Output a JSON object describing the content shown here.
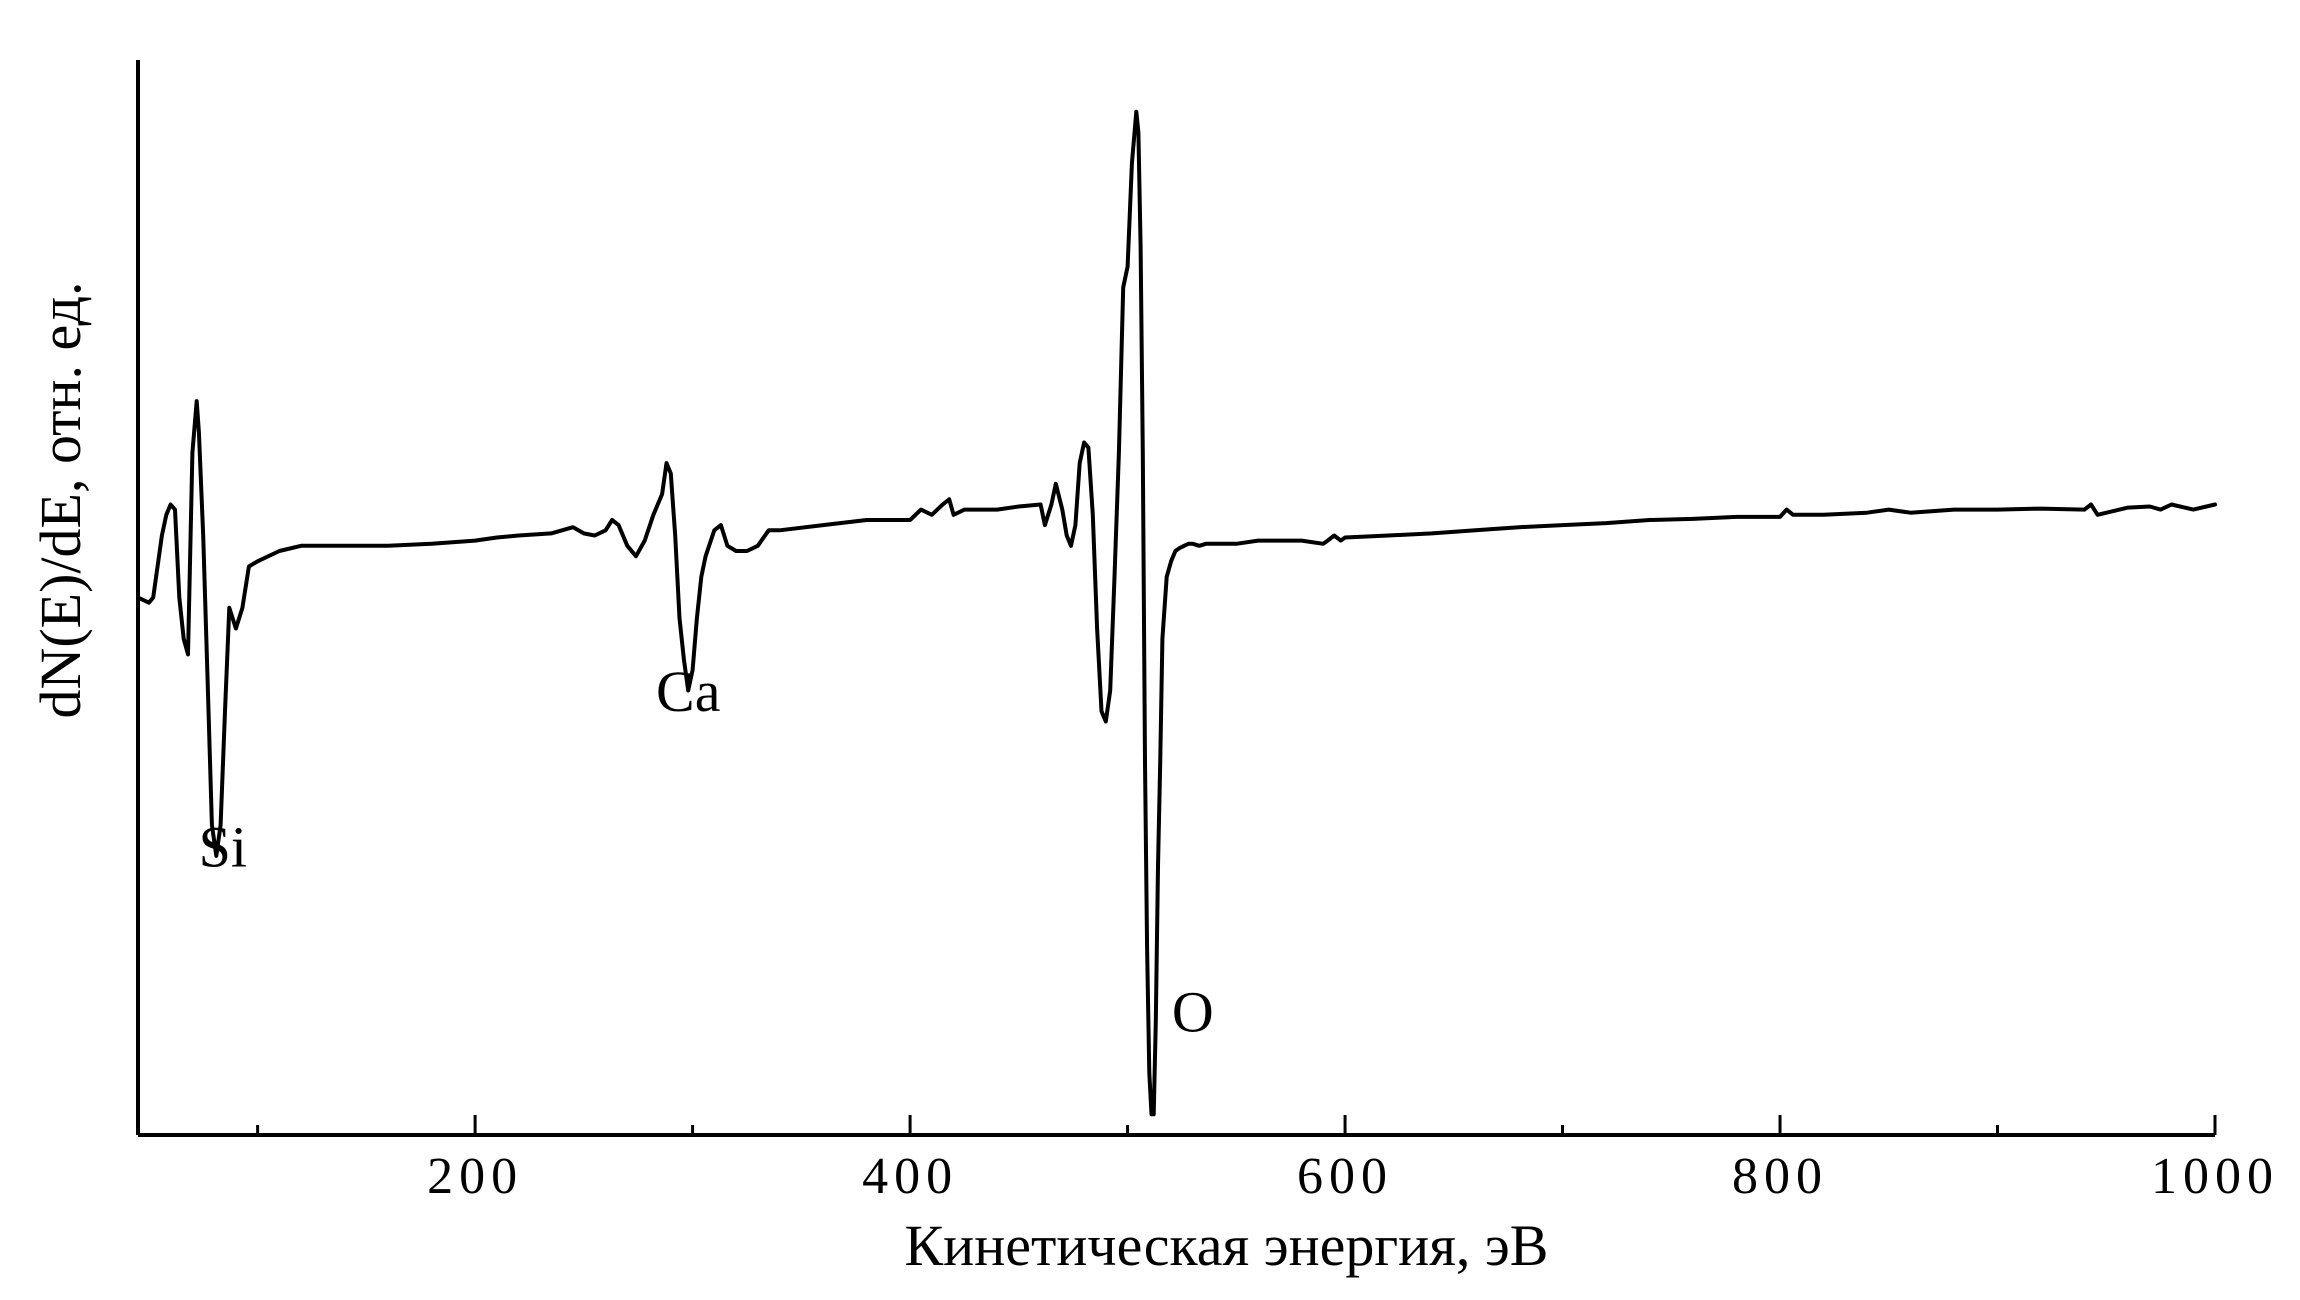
{
  "chart_data": {
    "type": "line",
    "xlabel": "Кинетическая энергия, эВ",
    "ylabel": "dN(E)/dE, отн. ед.",
    "xlim": [
      45,
      1000
    ],
    "ylim": [
      -560,
      480
    ],
    "xticks_major": [
      200,
      400,
      600,
      800,
      1000
    ],
    "xticks_minor": [
      100,
      300,
      500,
      700,
      900
    ],
    "xtick_labels": [
      "200",
      "400",
      "600",
      "800",
      "1000"
    ],
    "grid": false,
    "annotations": [
      {
        "text": "Si",
        "x": 84,
        "y": -300
      },
      {
        "text": "Ca",
        "x": 298,
        "y": -150
      },
      {
        "text": "O",
        "x": 530,
        "y": -460
      }
    ],
    "series": [
      {
        "x": [
          45,
          50,
          52,
          56,
          58,
          60,
          62,
          64,
          66,
          68,
          70,
          72,
          73,
          75,
          77,
          79,
          81,
          83,
          85,
          87,
          90,
          93,
          96,
          100,
          110,
          120,
          130,
          140,
          160,
          180,
          200,
          210,
          220,
          235,
          245,
          250,
          255,
          260,
          263,
          266,
          270,
          274,
          278,
          282,
          286,
          288,
          290,
          292,
          294,
          296,
          298,
          300,
          302,
          304,
          306,
          310,
          313,
          316,
          320,
          325,
          330,
          335,
          340,
          360,
          380,
          400,
          405,
          410,
          415,
          418,
          420,
          425,
          430,
          440,
          450,
          460,
          462,
          465,
          467,
          470,
          472,
          474,
          476,
          478,
          480,
          482,
          484,
          486,
          488,
          490,
          492,
          494,
          496,
          498,
          500,
          502,
          504,
          505,
          506,
          507,
          508,
          509,
          510,
          511,
          512,
          513,
          514,
          515,
          516,
          518,
          520,
          522,
          524,
          526,
          528,
          530,
          533,
          536,
          540,
          545,
          550,
          560,
          580,
          590,
          592,
          595,
          598,
          600,
          620,
          640,
          660,
          680,
          700,
          720,
          740,
          760,
          780,
          800,
          803,
          806,
          820,
          840,
          850,
          860,
          880,
          900,
          920,
          940,
          943,
          946,
          960,
          970,
          975,
          980,
          990,
          1000
        ],
        "y": [
          -40,
          -45,
          -40,
          20,
          40,
          50,
          45,
          -40,
          -80,
          -95,
          100,
          150,
          120,
          20,
          -120,
          -260,
          -290,
          -260,
          -150,
          -50,
          -70,
          -50,
          -10,
          -5,
          5,
          10,
          10,
          10,
          10,
          12,
          15,
          18,
          20,
          22,
          28,
          22,
          20,
          25,
          35,
          30,
          10,
          0,
          15,
          40,
          60,
          90,
          80,
          20,
          -60,
          -100,
          -130,
          -110,
          -60,
          -20,
          0,
          25,
          30,
          10,
          5,
          5,
          10,
          25,
          25,
          30,
          35,
          35,
          45,
          40,
          50,
          55,
          40,
          45,
          45,
          45,
          48,
          50,
          30,
          50,
          70,
          45,
          20,
          10,
          30,
          90,
          110,
          105,
          40,
          -70,
          -150,
          -160,
          -130,
          -20,
          100,
          260,
          280,
          380,
          430,
          410,
          300,
          100,
          -200,
          -380,
          -500,
          -540,
          -540,
          -450,
          -300,
          -200,
          -80,
          -20,
          -5,
          5,
          8,
          10,
          12,
          12,
          10,
          12,
          12,
          12,
          12,
          15,
          15,
          12,
          15,
          20,
          15,
          18,
          20,
          22,
          25,
          28,
          30,
          32,
          35,
          36,
          38,
          38,
          45,
          40,
          40,
          42,
          45,
          42,
          45,
          45,
          46,
          45,
          50,
          40,
          47,
          48,
          45,
          50,
          45,
          50
        ]
      }
    ]
  }
}
